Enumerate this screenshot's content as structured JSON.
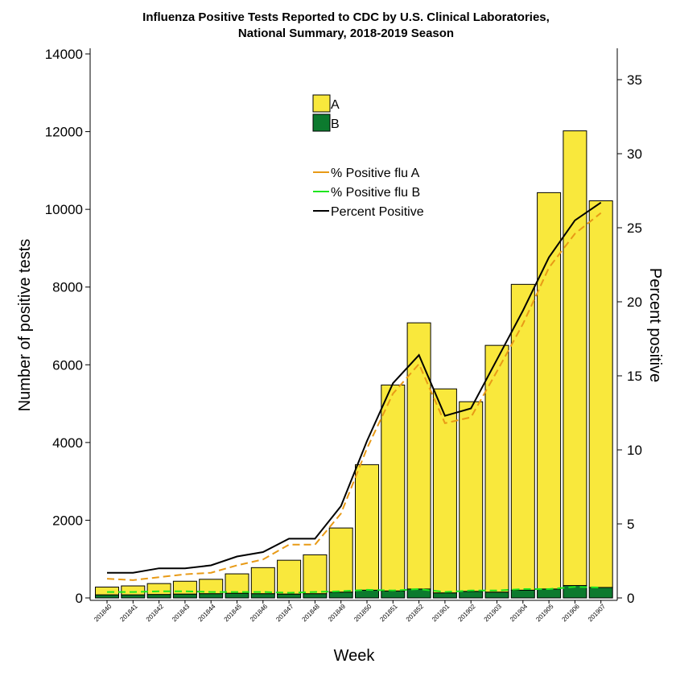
{
  "title_line1": "Influenza Positive Tests Reported to CDC by U.S. Clinical Laboratories,",
  "title_line2": "National Summary, 2018-2019 Season",
  "chart_data": {
    "type": "bar",
    "xlabel": "Week",
    "ylabel": "Number of positive tests",
    "y2label": "Percent positive",
    "ylim": [
      0,
      14000
    ],
    "y2lim": [
      0,
      37
    ],
    "yticks": [
      0,
      2000,
      4000,
      6000,
      8000,
      10000,
      12000,
      14000
    ],
    "y2ticks": [
      0,
      5,
      10,
      15,
      20,
      25,
      30,
      35
    ],
    "categories": [
      "201840",
      "201841",
      "201842",
      "201843",
      "201844",
      "201845",
      "201846",
      "201847",
      "201848",
      "201849",
      "201850",
      "201851",
      "201852",
      "201901",
      "201902",
      "201903",
      "201904",
      "201905",
      "201906",
      "201907"
    ],
    "series": [
      {
        "name": "A",
        "kind": "bar-stack",
        "color": "#f9e83c",
        "values": [
          200,
          230,
          280,
          330,
          370,
          500,
          670,
          870,
          1000,
          1650,
          3230,
          5300,
          6850,
          5250,
          4880,
          6350,
          7870,
          10200,
          11700,
          9950
        ]
      },
      {
        "name": "B",
        "kind": "bar-stack",
        "color": "#0c7a2e",
        "values": [
          80,
          80,
          90,
          100,
          110,
          120,
          110,
          100,
          110,
          150,
          200,
          180,
          230,
          130,
          170,
          150,
          200,
          230,
          320,
          270
        ]
      },
      {
        "name": "% Positive flu A",
        "kind": "line",
        "axis": "right",
        "color": "#e89a16",
        "dash": true,
        "values": [
          1.3,
          1.2,
          1.4,
          1.6,
          1.7,
          2.2,
          2.6,
          3.6,
          3.6,
          5.7,
          10.1,
          13.8,
          15.8,
          11.8,
          12.2,
          15.3,
          18.5,
          22.3,
          24.6,
          26.0
        ]
      },
      {
        "name": "% Positive flu B",
        "kind": "line",
        "axis": "right",
        "color": "#1ee61e",
        "dash": true,
        "values": [
          0.4,
          0.4,
          0.45,
          0.45,
          0.4,
          0.4,
          0.4,
          0.35,
          0.4,
          0.45,
          0.55,
          0.5,
          0.6,
          0.4,
          0.5,
          0.5,
          0.6,
          0.6,
          0.75,
          0.7
        ]
      },
      {
        "name": "Percent Positive",
        "kind": "line",
        "axis": "right",
        "color": "#000000",
        "dash": false,
        "values": [
          1.7,
          1.7,
          2.0,
          2.0,
          2.2,
          2.8,
          3.1,
          4.0,
          4.0,
          6.2,
          10.6,
          14.5,
          16.4,
          12.3,
          12.8,
          16.1,
          19.4,
          23.0,
          25.5,
          26.7
        ]
      }
    ],
    "grid": false,
    "legend": "top-center"
  }
}
